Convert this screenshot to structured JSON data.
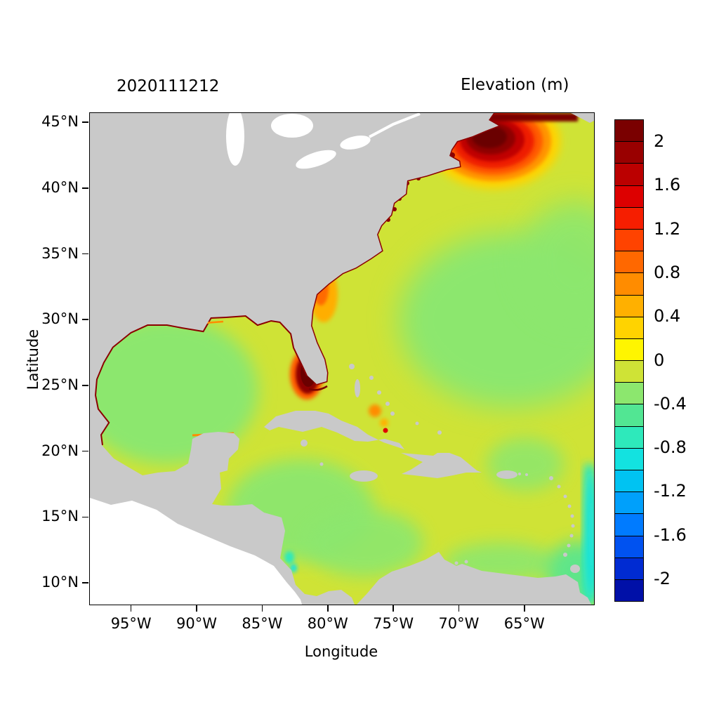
{
  "figure": {
    "date_title": "2020111212",
    "variable_title": "Elevation (m)"
  },
  "axes": {
    "x": {
      "label": "Longitude",
      "ticks": [
        "95°W",
        "90°W",
        "85°W",
        "80°W",
        "75°W",
        "70°W",
        "65°W"
      ]
    },
    "y": {
      "label": "Latitude",
      "ticks": [
        "45°N",
        "40°N",
        "35°N",
        "30°N",
        "25°N",
        "20°N",
        "15°N",
        "10°N"
      ]
    }
  },
  "colorbar": {
    "tick_labels": [
      "2",
      "1.6",
      "1.2",
      "0.8",
      "0.4",
      "0",
      "-0.4",
      "-0.8",
      "-1.2",
      "-1.6",
      "-2"
    ],
    "tick_values": [
      2,
      1.6,
      1.2,
      0.8,
      0.4,
      0,
      -0.4,
      -0.8,
      -1.2,
      -1.6,
      -2
    ],
    "value_min": -2.2,
    "value_max": 2.2,
    "segment_colors_top_to_bottom": [
      "#7a0000",
      "#990000",
      "#bb0000",
      "#dd0000",
      "#f61e00",
      "#ff4300",
      "#ff6800",
      "#ff8c00",
      "#ffb000",
      "#ffd300",
      "#fff500",
      "#cfe336",
      "#8ce76e",
      "#52e693",
      "#2ee9bb",
      "#13e2e0",
      "#00c3f2",
      "#00a0fb",
      "#007bff",
      "#0052f0",
      "#002bd2",
      "#0010a8"
    ]
  },
  "chart_data": {
    "type": "heatmap",
    "title": "2020111212",
    "colorbar_title": "Elevation (m)",
    "xlabel": "Longitude",
    "ylabel": "Latitude",
    "x_ticks": [
      "95°W",
      "90°W",
      "85°W",
      "80°W",
      "75°W",
      "70°W",
      "65°W"
    ],
    "y_ticks": [
      "45°N",
      "40°N",
      "35°N",
      "30°N",
      "25°N",
      "20°N",
      "15°N",
      "10°N"
    ],
    "lon_range_deg_w": [
      98.2,
      59.7
    ],
    "lat_range_deg_n": [
      8.4,
      45.7
    ],
    "value_range_m": [
      -2.2,
      2.2
    ],
    "contour_interval_m": 0.2,
    "legend_position": "right",
    "regions": [
      {
        "name": "open-atlantic",
        "approx_value_m": 0.3
      },
      {
        "name": "atlantic-central",
        "approx_value_m": 0.0
      },
      {
        "name": "gulf-of-mexico-interior",
        "approx_value_m": -0.1
      },
      {
        "name": "western-caribbean",
        "approx_value_m": -0.1
      },
      {
        "name": "gulf-of-maine-bay-of-fundy",
        "approx_value_m": 2.2
      },
      {
        "name": "st-lawrence-estuary-strip",
        "approx_value_m": 2.2
      },
      {
        "name": "southwest-florida-shelf",
        "approx_value_m": 2.0
      },
      {
        "name": "georgia-south-carolina-coast",
        "approx_value_m": 0.8
      },
      {
        "name": "bahama-banks-spots",
        "approx_value_m": 0.9
      },
      {
        "name": "northern-gulf-coast-fringe",
        "approx_value_m": 1.8
      },
      {
        "name": "southeast-corner-edge",
        "approx_value_m": -0.5
      },
      {
        "name": "nicaragua-coast-spot",
        "approx_value_m": -0.4
      }
    ],
    "colors": {
      "land": "#c9c9c9",
      "ocean_base_0_to_0p4": "#cfe336",
      "green_0_to_minus0p4": "#8ce76e",
      "hotspot_core": "#6b0000",
      "no_data": "#ffffff"
    }
  }
}
